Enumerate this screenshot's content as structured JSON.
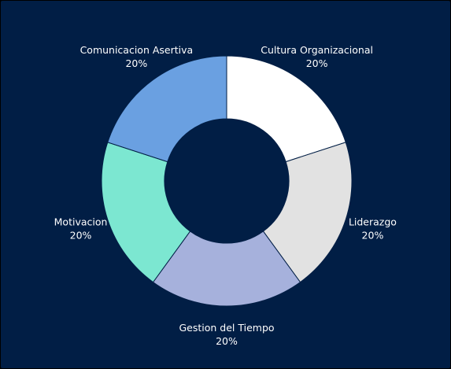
{
  "chart_data": {
    "type": "pie",
    "donut": true,
    "start_angle_deg": 0,
    "direction": "clockwise",
    "slices": [
      {
        "label": "Cultura Organizacional",
        "value": 20,
        "value_label": "20%",
        "color": "#ffffff"
      },
      {
        "label": "Liderazgo",
        "value": 20,
        "value_label": "20%",
        "color": "#e2e2e2"
      },
      {
        "label": "Gestion del Tiempo",
        "value": 20,
        "value_label": "20%",
        "color": "#a6b1dc"
      },
      {
        "label": "Motivacion",
        "value": 20,
        "value_label": "20%",
        "color": "#7ce7d1"
      },
      {
        "label": "Comunicacion Asertiva",
        "value": 20,
        "value_label": "20%",
        "color": "#6aa0e1"
      }
    ],
    "background_color": "#011e45",
    "legend": "none"
  }
}
